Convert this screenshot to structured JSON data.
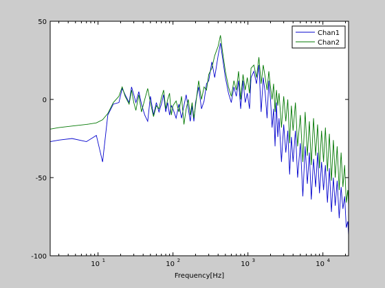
{
  "chart_data": {
    "type": "line",
    "xlabel": "Frequency[Hz]",
    "ylabel": "",
    "title": "",
    "xscale": "log",
    "xlim": [
      2.3,
      22000
    ],
    "ylim": [
      -100,
      50
    ],
    "grid": false,
    "legend_position": "top-right",
    "x_ticks": [
      {
        "value": 10,
        "base": "10",
        "exp": "1"
      },
      {
        "value": 100,
        "base": "10",
        "exp": "2"
      },
      {
        "value": 1000,
        "base": "10",
        "exp": "3"
      },
      {
        "value": 10000,
        "base": "10",
        "exp": "4"
      }
    ],
    "y_ticks": [
      {
        "value": 50,
        "label": "50"
      },
      {
        "value": 0,
        "label": "0"
      },
      {
        "value": -50,
        "label": "-50"
      },
      {
        "value": -100,
        "label": "-100"
      }
    ],
    "series": [
      {
        "name": "Chan1",
        "color": "#0000cc",
        "points": [
          [
            2.3,
            -27
          ],
          [
            3,
            -26
          ],
          [
            4.5,
            -25
          ],
          [
            7,
            -27
          ],
          [
            9.5,
            -23
          ],
          [
            11.5,
            -40
          ],
          [
            13.5,
            -10
          ],
          [
            16,
            -3
          ],
          [
            19,
            -2
          ],
          [
            21,
            7
          ],
          [
            23,
            3
          ],
          [
            26,
            -2
          ],
          [
            28,
            8
          ],
          [
            30,
            3
          ],
          [
            32,
            -2
          ],
          [
            35,
            5
          ],
          [
            38,
            -3
          ],
          [
            42,
            -10
          ],
          [
            46,
            -14
          ],
          [
            50,
            2
          ],
          [
            55,
            -10
          ],
          [
            60,
            -2
          ],
          [
            65,
            -8
          ],
          [
            70,
            -3
          ],
          [
            75,
            3
          ],
          [
            80,
            -8
          ],
          [
            85,
            -2
          ],
          [
            90,
            -10
          ],
          [
            95,
            -4
          ],
          [
            100,
            -6
          ],
          [
            110,
            -12
          ],
          [
            120,
            -3
          ],
          [
            130,
            -12
          ],
          [
            140,
            -4
          ],
          [
            150,
            3
          ],
          [
            160,
            -6
          ],
          [
            170,
            -14
          ],
          [
            180,
            -4
          ],
          [
            190,
            -14
          ],
          [
            200,
            -2
          ],
          [
            220,
            8
          ],
          [
            240,
            -6
          ],
          [
            260,
            -1
          ],
          [
            280,
            10
          ],
          [
            300,
            12
          ],
          [
            330,
            24
          ],
          [
            360,
            14
          ],
          [
            400,
            28
          ],
          [
            430,
            36
          ],
          [
            460,
            26
          ],
          [
            500,
            14
          ],
          [
            550,
            4
          ],
          [
            600,
            -2
          ],
          [
            650,
            8
          ],
          [
            700,
            2
          ],
          [
            750,
            12
          ],
          [
            800,
            -6
          ],
          [
            860,
            12
          ],
          [
            920,
            -2
          ],
          [
            980,
            4
          ],
          [
            1050,
            -6
          ],
          [
            1100,
            14
          ],
          [
            1200,
            18
          ],
          [
            1300,
            10
          ],
          [
            1400,
            22
          ],
          [
            1500,
            -8
          ],
          [
            1600,
            14
          ],
          [
            1700,
            4
          ],
          [
            1800,
            -12
          ],
          [
            1900,
            12
          ],
          [
            2000,
            0
          ],
          [
            2100,
            -18
          ],
          [
            2200,
            -6
          ],
          [
            2300,
            -30
          ],
          [
            2400,
            -2
          ],
          [
            2500,
            -24
          ],
          [
            2600,
            -12
          ],
          [
            2800,
            -40
          ],
          [
            3000,
            -16
          ],
          [
            3200,
            -34
          ],
          [
            3400,
            -20
          ],
          [
            3600,
            -48
          ],
          [
            3800,
            -24
          ],
          [
            4000,
            -40
          ],
          [
            4300,
            -20
          ],
          [
            4600,
            -50
          ],
          [
            5000,
            -28
          ],
          [
            5400,
            -62
          ],
          [
            5800,
            -30
          ],
          [
            6200,
            -54
          ],
          [
            6600,
            -34
          ],
          [
            7000,
            -64
          ],
          [
            7500,
            -38
          ],
          [
            8000,
            -56
          ],
          [
            8500,
            -34
          ],
          [
            9000,
            -60
          ],
          [
            9600,
            -40
          ],
          [
            10200,
            -58
          ],
          [
            10800,
            -42
          ],
          [
            11500,
            -66
          ],
          [
            12200,
            -44
          ],
          [
            13000,
            -72
          ],
          [
            13800,
            -50
          ],
          [
            14600,
            -68
          ],
          [
            15500,
            -52
          ],
          [
            16500,
            -76
          ],
          [
            17500,
            -56
          ],
          [
            18500,
            -70
          ],
          [
            19500,
            -62
          ],
          [
            20500,
            -82
          ],
          [
            21500,
            -78
          ],
          [
            22000,
            -87
          ]
        ]
      },
      {
        "name": "Chan2",
        "color": "#007700",
        "points": [
          [
            2.3,
            -19
          ],
          [
            3,
            -18
          ],
          [
            4.5,
            -17
          ],
          [
            7,
            -16
          ],
          [
            9.5,
            -15
          ],
          [
            11.5,
            -13
          ],
          [
            13.5,
            -9
          ],
          [
            16,
            -2
          ],
          [
            19,
            2
          ],
          [
            21,
            8
          ],
          [
            23,
            2
          ],
          [
            26,
            -3
          ],
          [
            28,
            6
          ],
          [
            30,
            -2
          ],
          [
            32,
            -7
          ],
          [
            35,
            3
          ],
          [
            38,
            -8
          ],
          [
            42,
            0
          ],
          [
            46,
            7
          ],
          [
            50,
            -2
          ],
          [
            55,
            -11
          ],
          [
            60,
            -4
          ],
          [
            65,
            -6
          ],
          [
            70,
            1
          ],
          [
            75,
            6
          ],
          [
            80,
            -6
          ],
          [
            85,
            0
          ],
          [
            90,
            4
          ],
          [
            95,
            -10
          ],
          [
            100,
            -4
          ],
          [
            110,
            -1
          ],
          [
            120,
            -8
          ],
          [
            130,
            2
          ],
          [
            140,
            -16
          ],
          [
            150,
            -6
          ],
          [
            160,
            0
          ],
          [
            170,
            -10
          ],
          [
            180,
            -2
          ],
          [
            190,
            -12
          ],
          [
            200,
            -4
          ],
          [
            220,
            12
          ],
          [
            240,
            0
          ],
          [
            260,
            8
          ],
          [
            280,
            6
          ],
          [
            300,
            16
          ],
          [
            330,
            20
          ],
          [
            360,
            28
          ],
          [
            400,
            34
          ],
          [
            430,
            41
          ],
          [
            460,
            30
          ],
          [
            500,
            18
          ],
          [
            550,
            8
          ],
          [
            600,
            2
          ],
          [
            650,
            12
          ],
          [
            700,
            6
          ],
          [
            750,
            18
          ],
          [
            800,
            0
          ],
          [
            860,
            16
          ],
          [
            920,
            6
          ],
          [
            980,
            14
          ],
          [
            1050,
            4
          ],
          [
            1100,
            20
          ],
          [
            1200,
            22
          ],
          [
            1300,
            14
          ],
          [
            1400,
            27
          ],
          [
            1500,
            10
          ],
          [
            1600,
            22
          ],
          [
            1700,
            14
          ],
          [
            1800,
            6
          ],
          [
            1900,
            18
          ],
          [
            2000,
            8
          ],
          [
            2100,
            0
          ],
          [
            2200,
            10
          ],
          [
            2300,
            -8
          ],
          [
            2400,
            6
          ],
          [
            2500,
            -4
          ],
          [
            2600,
            4
          ],
          [
            2800,
            -18
          ],
          [
            3000,
            2
          ],
          [
            3200,
            -14
          ],
          [
            3400,
            0
          ],
          [
            3600,
            -28
          ],
          [
            3800,
            -4
          ],
          [
            4000,
            -20
          ],
          [
            4300,
            -2
          ],
          [
            4600,
            -30
          ],
          [
            5000,
            -10
          ],
          [
            5400,
            -40
          ],
          [
            5800,
            -8
          ],
          [
            6200,
            -36
          ],
          [
            6600,
            -14
          ],
          [
            7000,
            -42
          ],
          [
            7500,
            -12
          ],
          [
            8000,
            -36
          ],
          [
            8500,
            -16
          ],
          [
            9000,
            -44
          ],
          [
            9600,
            -20
          ],
          [
            10200,
            -40
          ],
          [
            10800,
            -18
          ],
          [
            11500,
            -46
          ],
          [
            12200,
            -22
          ],
          [
            13000,
            -52
          ],
          [
            13800,
            -26
          ],
          [
            14600,
            -50
          ],
          [
            15500,
            -30
          ],
          [
            16500,
            -58
          ],
          [
            17500,
            -34
          ],
          [
            18500,
            -56
          ],
          [
            19500,
            -42
          ],
          [
            20500,
            -66
          ],
          [
            21500,
            -58
          ],
          [
            22000,
            -68
          ]
        ]
      }
    ]
  }
}
